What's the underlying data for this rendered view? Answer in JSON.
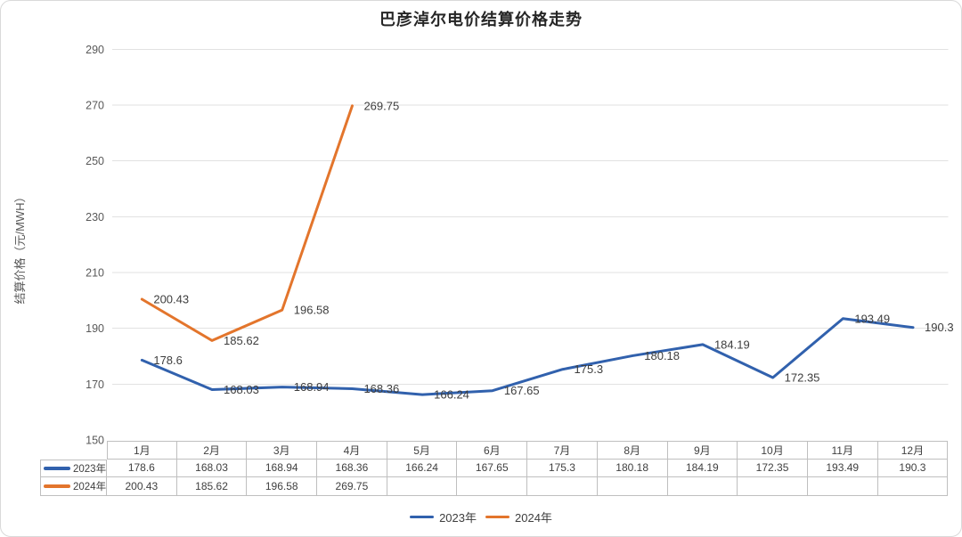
{
  "title": "巴彦淖尔电价结算价格走势",
  "colors": {
    "series_2023": "#3161AD",
    "series_2024": "#E3752C",
    "grid": "#E2E2E2",
    "table_border": "#BFBFBF",
    "label_text": "#3D3D3D",
    "tick_text": "#595959"
  },
  "chart_data": {
    "type": "line",
    "title": "巴彦淖尔电价结算价格走势",
    "ylabel": "结算价格（元/MWH）",
    "xlabel": "",
    "ylim": [
      150,
      290
    ],
    "ytick_step": 20,
    "grid": true,
    "legend_position": "bottom",
    "data_labels": true,
    "data_table": true,
    "categories": [
      "1月",
      "2月",
      "3月",
      "4月",
      "5月",
      "6月",
      "7月",
      "8月",
      "9月",
      "10月",
      "11月",
      "12月"
    ],
    "series": [
      {
        "name": "2023年",
        "color": "#3161AD",
        "values": [
          178.6,
          168.03,
          168.94,
          168.36,
          166.24,
          167.65,
          175.3,
          180.18,
          184.19,
          172.35,
          193.49,
          190.3
        ]
      },
      {
        "name": "2024年",
        "color": "#E3752C",
        "values": [
          200.43,
          185.62,
          196.58,
          269.75
        ]
      }
    ]
  }
}
